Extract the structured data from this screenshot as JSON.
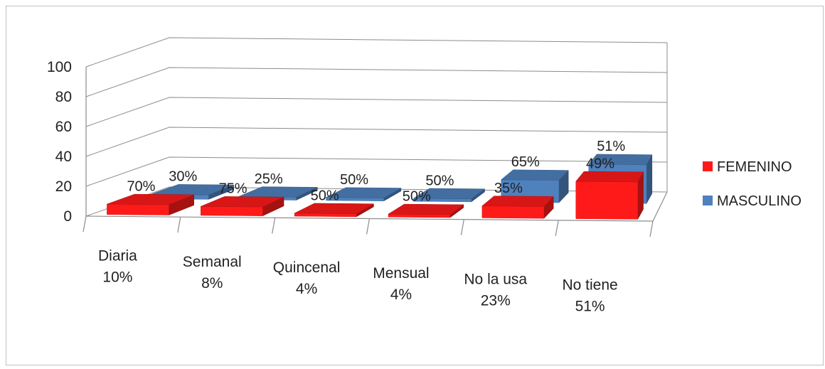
{
  "chart_data": {
    "type": "bar",
    "title": "",
    "xlabel": "",
    "ylabel": "",
    "ylim": [
      0,
      100
    ],
    "yticks": [
      0,
      20,
      40,
      60,
      80,
      100
    ],
    "grid": true,
    "style": "3d-clustered-column",
    "legend_position": "right",
    "categories": [
      {
        "name": "Diaria",
        "total": "10%"
      },
      {
        "name": "Semanal",
        "total": "8%"
      },
      {
        "name": "Quincenal",
        "total": "4%"
      },
      {
        "name": "Mensual",
        "total": "4%"
      },
      {
        "name": "No la usa",
        "total": "23%"
      },
      {
        "name": "No tiene",
        "total": "51%"
      }
    ],
    "series": [
      {
        "name": "FEMENINO",
        "color": "#ff1a1a",
        "values": [
          7,
          6,
          2,
          2,
          8,
          25
        ],
        "labels": [
          "70%",
          "75%",
          "50%",
          "50%",
          "35%",
          "49%"
        ]
      },
      {
        "name": "MASCULINO",
        "color": "#4f81bd",
        "values": [
          3,
          2,
          2,
          2,
          15,
          26
        ],
        "labels": [
          "30%",
          "25%",
          "50%",
          "50%",
          "65%",
          "51%"
        ]
      }
    ]
  }
}
